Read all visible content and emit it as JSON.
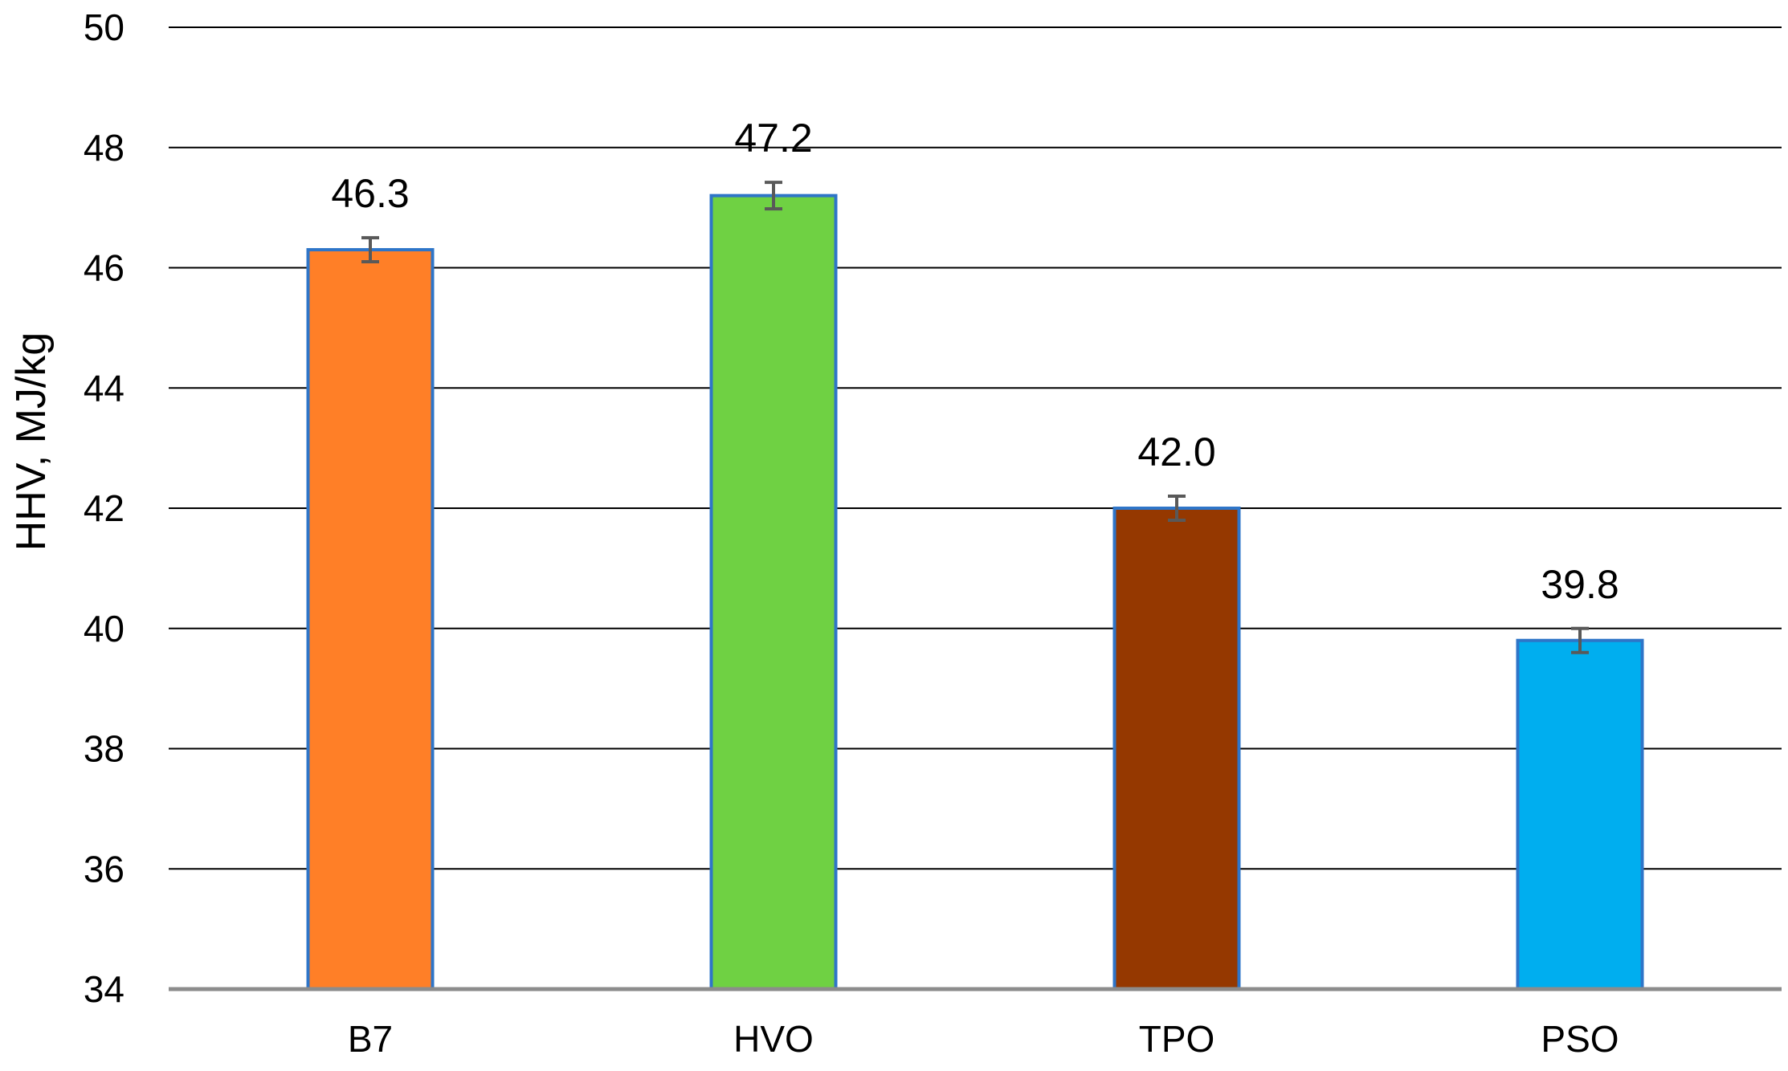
{
  "chart_data": {
    "type": "bar",
    "categories": [
      "B7",
      "HVO",
      "TPO",
      "PSO"
    ],
    "values": [
      46.3,
      47.2,
      42.0,
      39.8
    ],
    "value_labels": [
      "46.3",
      "47.2",
      "42.0",
      "39.8"
    ],
    "error": [
      0.2,
      0.22,
      0.2,
      0.2
    ],
    "bar_colors": [
      "#FF7F27",
      "#6FD143",
      "#953800",
      "#00AEEF"
    ],
    "bar_border_color": "#2E75C8",
    "error_bar_color": "#595959",
    "title": "",
    "xlabel": "",
    "ylabel": "HHV, MJ/kg",
    "ylim": [
      34,
      50
    ],
    "yticks": [
      34,
      36,
      38,
      40,
      42,
      44,
      46,
      48,
      50
    ],
    "ytick_labels": [
      "34",
      "36",
      "38",
      "40",
      "42",
      "44",
      "46",
      "48",
      "50"
    ],
    "grid": true,
    "legend": "none"
  }
}
